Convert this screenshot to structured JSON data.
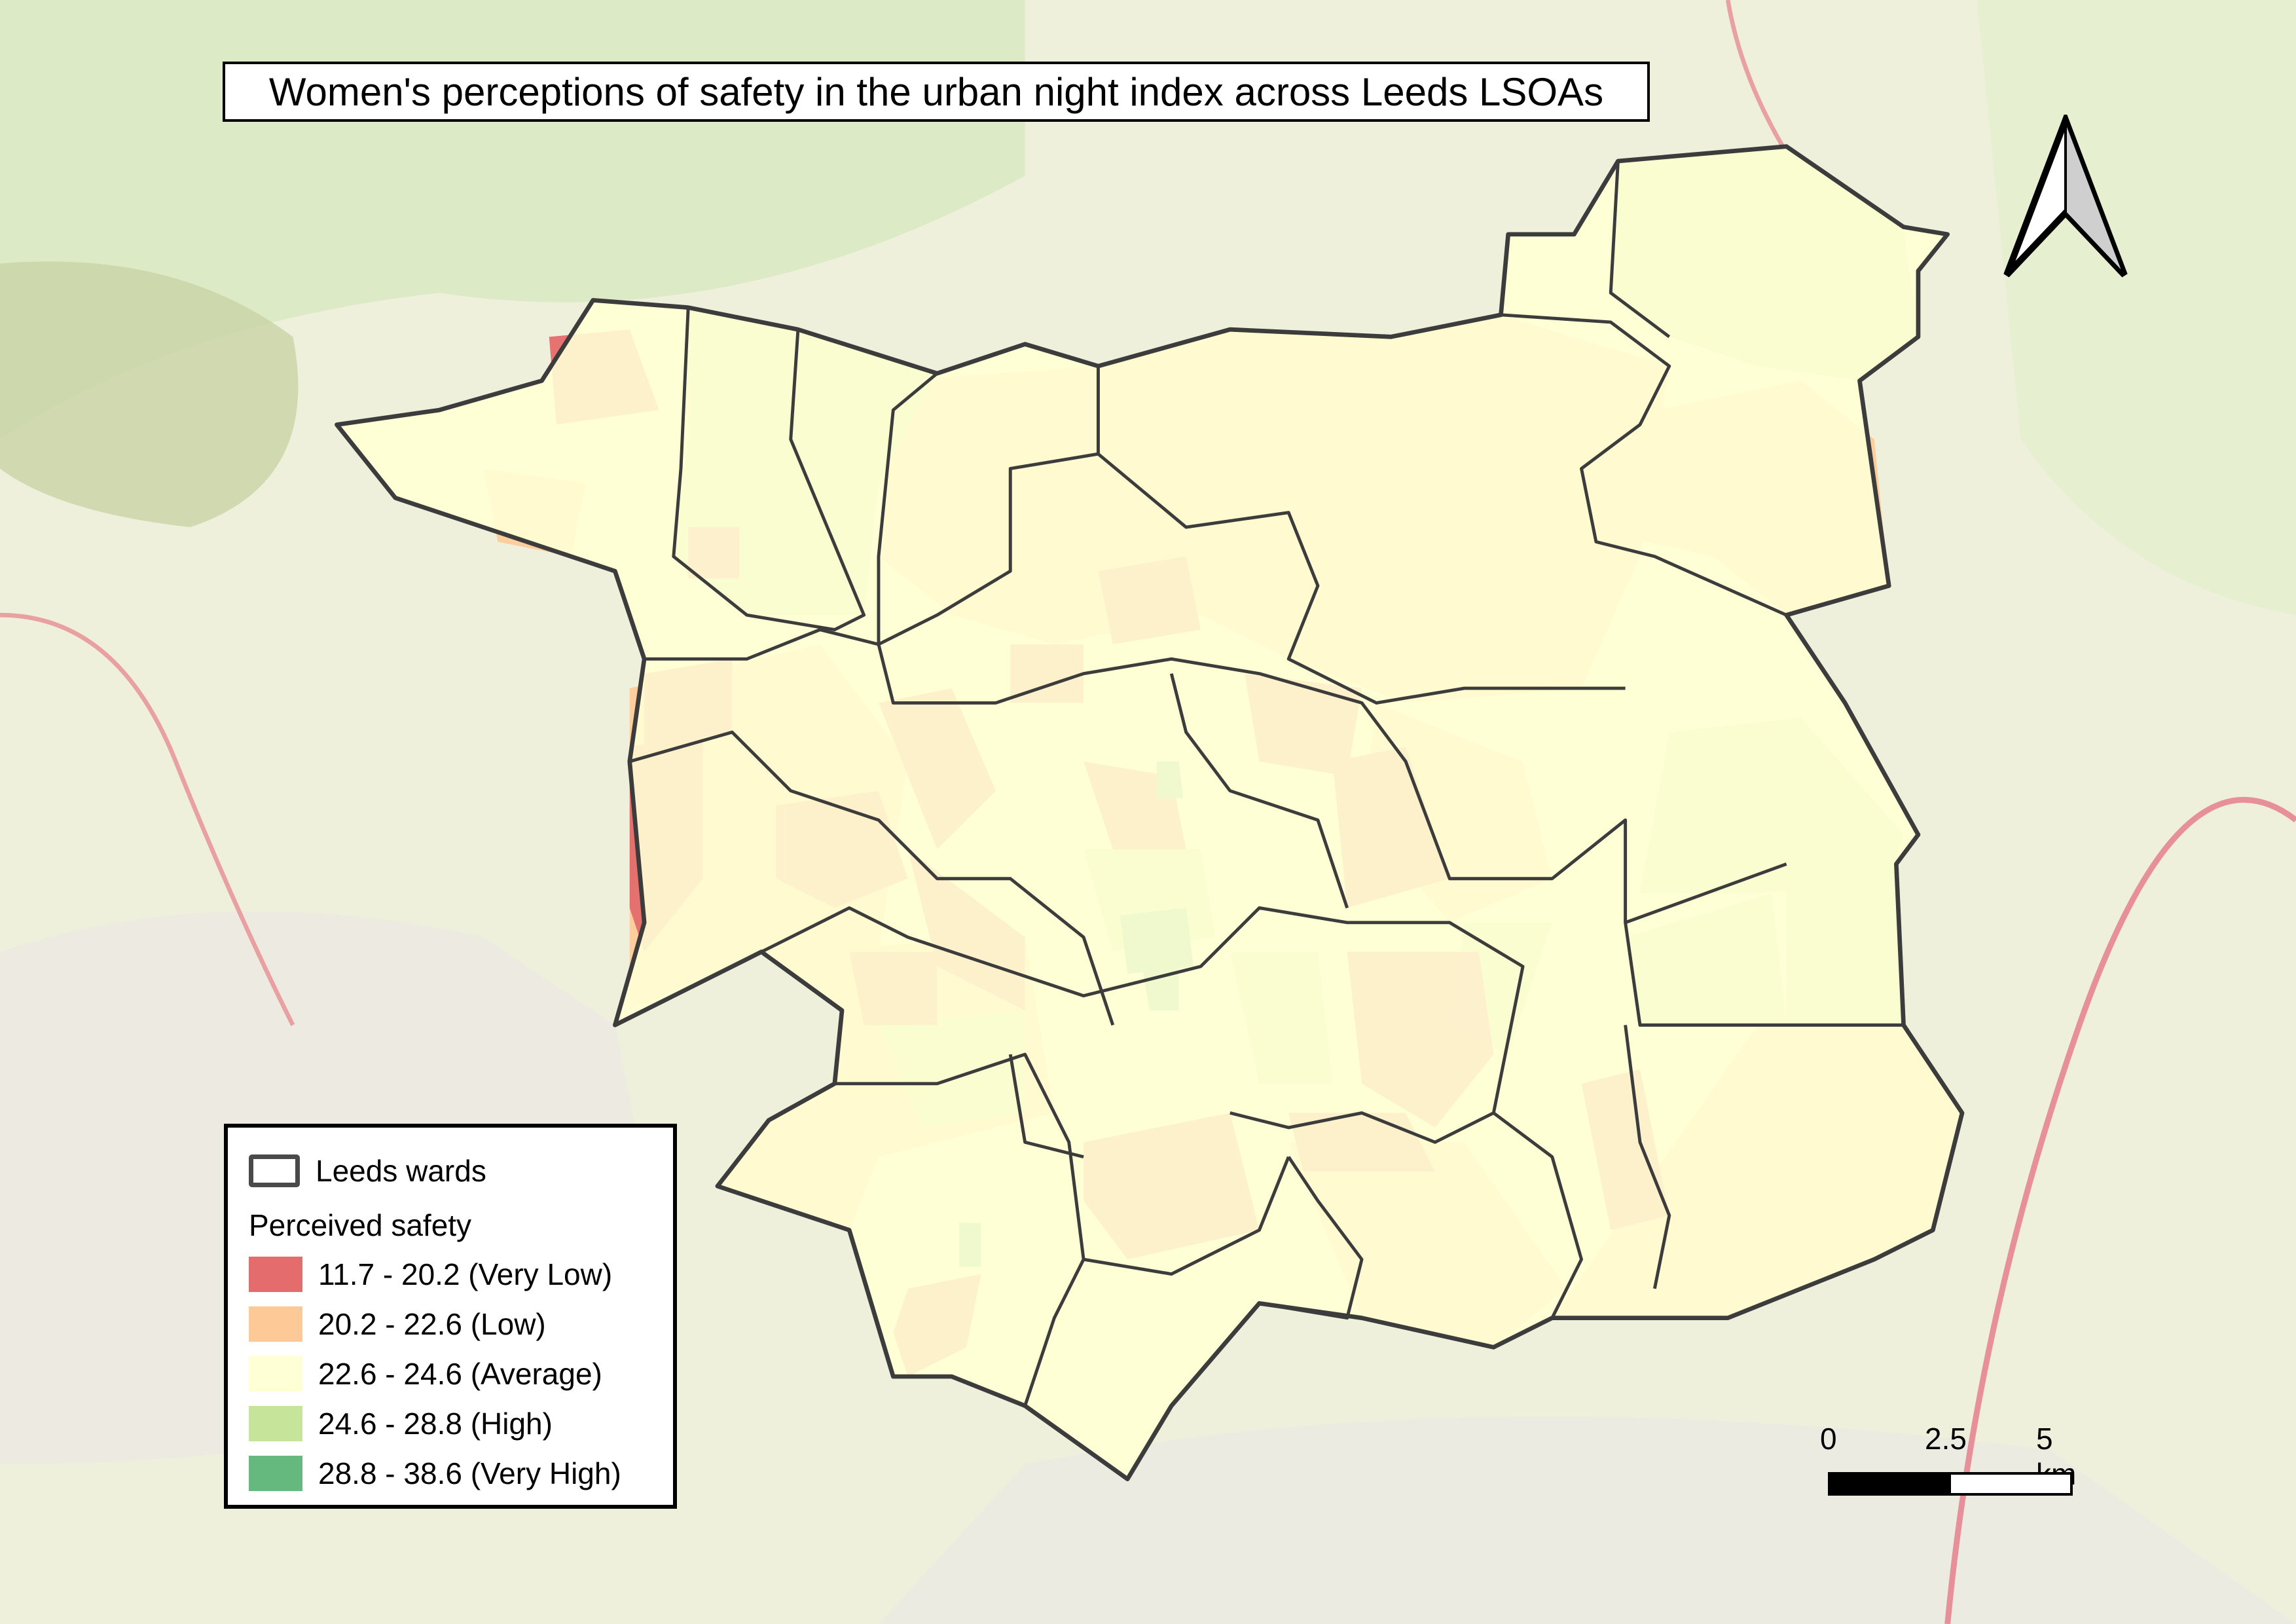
{
  "title": "Women's perceptions of safety in the urban night index across Leeds LSOAs",
  "legend": {
    "wards_label": "Leeds wards",
    "heading": "Perceived safety",
    "classes": [
      {
        "label": "11.7 - 20.2 (Very Low)",
        "color": "#e46c6c"
      },
      {
        "label": "20.2 - 22.6 (Low)",
        "color": "#fdc996"
      },
      {
        "label": "22.6 - 24.6 (Average)",
        "color": "#ffffd6"
      },
      {
        "label": "24.6 - 28.8 (High)",
        "color": "#c6e59a"
      },
      {
        "label": "28.8 - 38.6 (Very High)",
        "color": "#66b97e"
      }
    ]
  },
  "scale_bar": {
    "labels": [
      "0",
      "2.5",
      "5 km"
    ]
  },
  "north_arrow": {
    "icon": "north-arrow-icon"
  },
  "colors": {
    "ward_outline": "#3c3c3c",
    "basemap": "#f2efe9"
  }
}
